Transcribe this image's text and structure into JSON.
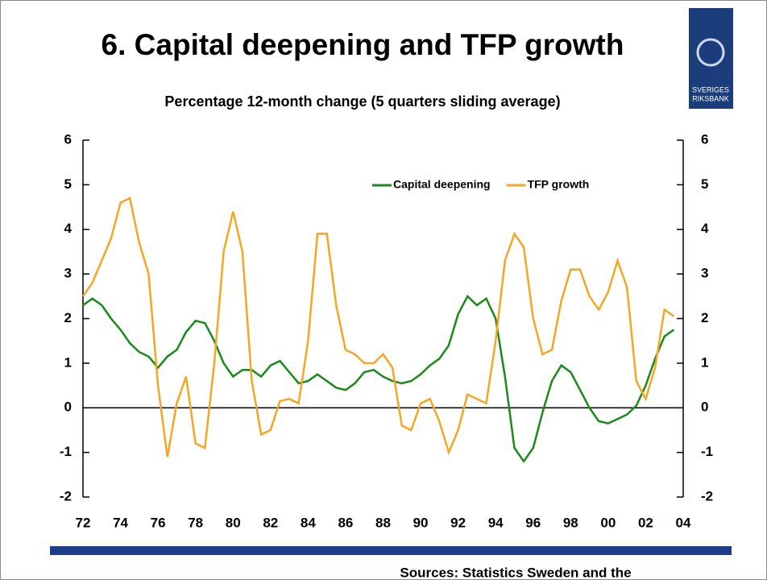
{
  "chart_data": {
    "type": "line",
    "title": "6. Capital deepening and TFP growth",
    "subtitle": "Percentage 12-month change (5 quarters sliding average)",
    "source": "Sources: Statistics Sweden and the",
    "logo_text": [
      "SVERIGES",
      "RIKSBANK"
    ],
    "legend": "upper right",
    "x": [
      1972,
      1972.5,
      1973,
      1973.5,
      1974,
      1974.5,
      1975,
      1975.5,
      1976,
      1976.5,
      1977,
      1977.5,
      1978,
      1978.5,
      1979,
      1979.5,
      1980,
      1980.5,
      1981,
      1981.5,
      1982,
      1982.5,
      1983,
      1983.5,
      1984,
      1984.5,
      1985,
      1985.5,
      1986,
      1986.5,
      1987,
      1987.5,
      1988,
      1988.5,
      1989,
      1989.5,
      1990,
      1990.5,
      1991,
      1991.5,
      1992,
      1992.5,
      1993,
      1993.5,
      1994,
      1994.5,
      1995,
      1995.5,
      1996,
      1996.5,
      1997,
      1997.5,
      1998,
      1998.5,
      1999,
      1999.5,
      2000,
      2000.5,
      2001,
      2001.5,
      2002,
      2002.5,
      2003,
      2003.5
    ],
    "series": [
      {
        "name": "Capital deepening",
        "color": "#1a8a1a",
        "values": [
          2.3,
          2.45,
          2.3,
          2.0,
          1.75,
          1.45,
          1.25,
          1.15,
          0.9,
          1.15,
          1.3,
          1.7,
          1.95,
          1.9,
          1.5,
          1.0,
          0.7,
          0.85,
          0.85,
          0.7,
          0.95,
          1.05,
          0.8,
          0.55,
          0.6,
          0.75,
          0.6,
          0.45,
          0.4,
          0.55,
          0.8,
          0.85,
          0.7,
          0.6,
          0.55,
          0.6,
          0.75,
          0.95,
          1.1,
          1.4,
          2.1,
          2.5,
          2.3,
          2.45,
          2.0,
          0.7,
          -0.9,
          -1.2,
          -0.9,
          -0.1,
          0.6,
          0.95,
          0.8,
          0.4,
          0.0,
          -0.3,
          -0.35,
          -0.25,
          -0.15,
          0.05,
          0.5,
          1.1,
          1.6,
          1.75
        ]
      },
      {
        "name": "TFP growth",
        "color": "#f5a623",
        "values": [
          2.5,
          2.8,
          3.3,
          3.8,
          4.6,
          4.7,
          3.7,
          3.0,
          0.5,
          -1.1,
          0.1,
          0.7,
          -0.8,
          -0.9,
          1.0,
          3.5,
          4.4,
          3.5,
          0.6,
          -0.6,
          -0.5,
          0.15,
          0.2,
          0.1,
          1.5,
          3.9,
          3.9,
          2.3,
          1.3,
          1.2,
          1.0,
          1.0,
          1.2,
          0.9,
          -0.4,
          -0.5,
          0.1,
          0.2,
          -0.3,
          -1.0,
          -0.5,
          0.3,
          0.2,
          0.1,
          1.5,
          3.3,
          3.9,
          3.6,
          2.0,
          1.2,
          1.3,
          2.4,
          3.1,
          3.1,
          2.5,
          2.2,
          2.6,
          3.3,
          2.7,
          0.6,
          0.2,
          0.9,
          2.2,
          2.05
        ]
      }
    ],
    "xlim": [
      1972,
      2004
    ],
    "xticks": [
      {
        "value": 1972,
        "label": "72"
      },
      {
        "value": 1974,
        "label": "74"
      },
      {
        "value": 1976,
        "label": "76"
      },
      {
        "value": 1978,
        "label": "78"
      },
      {
        "value": 1980,
        "label": "80"
      },
      {
        "value": 1982,
        "label": "82"
      },
      {
        "value": 1984,
        "label": "84"
      },
      {
        "value": 1986,
        "label": "86"
      },
      {
        "value": 1988,
        "label": "88"
      },
      {
        "value": 1990,
        "label": "90"
      },
      {
        "value": 1992,
        "label": "92"
      },
      {
        "value": 1994,
        "label": "94"
      },
      {
        "value": 1996,
        "label": "96"
      },
      {
        "value": 1998,
        "label": "98"
      },
      {
        "value": 2000,
        "label": "00"
      },
      {
        "value": 2002,
        "label": "02"
      },
      {
        "value": 2004,
        "label": "04"
      }
    ],
    "ylim": [
      -2,
      6
    ],
    "yticks": [
      -2,
      -1,
      0,
      1,
      2,
      3,
      4,
      5,
      6
    ],
    "y2lim": [
      -2,
      6
    ],
    "y2ticks": [
      -2,
      -1,
      0,
      1,
      2,
      3,
      4,
      5,
      6
    ]
  }
}
